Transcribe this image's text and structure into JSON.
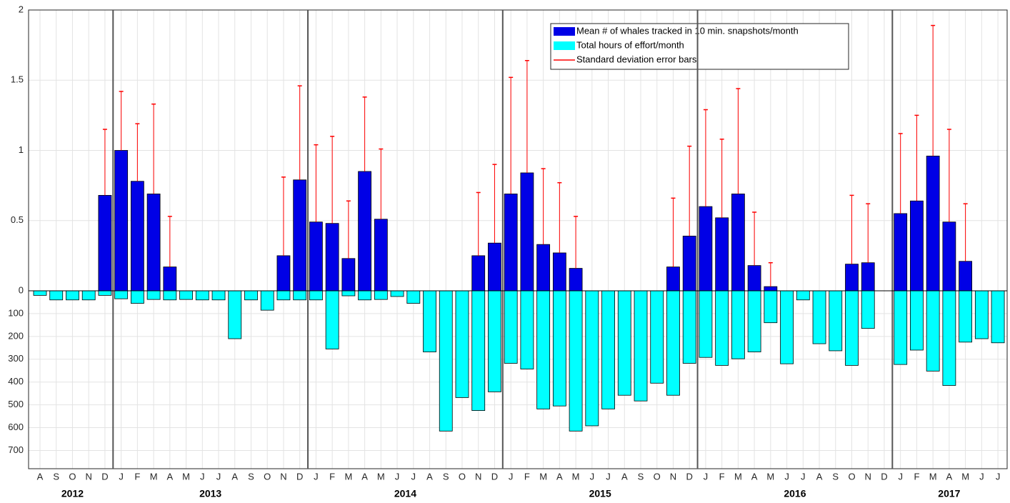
{
  "chart_data": {
    "type": "bar",
    "categories": [
      "A",
      "S",
      "O",
      "N",
      "D",
      "J",
      "F",
      "M",
      "A",
      "M",
      "J",
      "J",
      "A",
      "S",
      "O",
      "N",
      "D",
      "J",
      "F",
      "M",
      "A",
      "M",
      "J",
      "J",
      "A",
      "S",
      "O",
      "N",
      "D",
      "J",
      "F",
      "M",
      "A",
      "M",
      "J",
      "J",
      "A",
      "S",
      "O",
      "N",
      "D",
      "J",
      "F",
      "M",
      "A",
      "M",
      "J",
      "J",
      "A",
      "S",
      "O",
      "N",
      "D",
      "J",
      "F",
      "M",
      "A",
      "M",
      "J",
      "J"
    ],
    "year_labels": [
      "2012",
      "2013",
      "2014",
      "2015",
      "2016",
      "2017"
    ],
    "series": [
      {
        "name": "Mean # of whales tracked in 10 min. snapshots/month",
        "color": "#0000e6",
        "values": [
          null,
          null,
          null,
          null,
          0.68,
          1.0,
          0.78,
          0.69,
          0.17,
          null,
          null,
          null,
          null,
          null,
          null,
          0.25,
          0.79,
          0.49,
          0.48,
          0.23,
          0.85,
          0.51,
          null,
          null,
          null,
          null,
          null,
          0.25,
          0.34,
          0.69,
          0.84,
          0.33,
          0.27,
          0.16,
          null,
          null,
          null,
          null,
          null,
          0.17,
          0.39,
          0.6,
          0.52,
          0.69,
          0.18,
          0.03,
          null,
          null,
          null,
          null,
          0.19,
          0.2,
          null,
          0.55,
          0.64,
          0.96,
          0.49,
          0.21,
          null,
          null
        ]
      },
      {
        "name": "Total hours of effort/month",
        "color": "#00ffff",
        "axis": "y2",
        "values": [
          20,
          40,
          40,
          40,
          20,
          35,
          55,
          38,
          40,
          38,
          40,
          40,
          210,
          40,
          85,
          40,
          40,
          40,
          255,
          22,
          40,
          38,
          25,
          55,
          268,
          615,
          468,
          525,
          443,
          318,
          343,
          518,
          505,
          615,
          592,
          518,
          458,
          483,
          405,
          458,
          318,
          292,
          327,
          298,
          268,
          140,
          320,
          40,
          232,
          263,
          327,
          165,
          null,
          323,
          260,
          352,
          415,
          225,
          210,
          228
        ]
      }
    ],
    "errors": {
      "name": "Standard deviation error bars",
      "color": "#ff0000",
      "values": [
        null,
        null,
        null,
        null,
        0.47,
        0.42,
        0.41,
        0.64,
        0.36,
        null,
        null,
        null,
        null,
        null,
        null,
        0.56,
        0.67,
        0.55,
        0.62,
        0.41,
        0.53,
        0.5,
        null,
        null,
        null,
        null,
        null,
        0.45,
        0.56,
        0.83,
        0.8,
        0.54,
        0.5,
        0.37,
        null,
        null,
        null,
        null,
        null,
        0.49,
        0.64,
        0.69,
        0.56,
        0.75,
        0.38,
        0.17,
        null,
        null,
        null,
        null,
        0.49,
        0.42,
        null,
        0.57,
        0.61,
        0.93,
        0.66,
        0.41,
        null,
        null
      ]
    },
    "ylim": [
      0,
      2
    ],
    "yticks": [
      0,
      0.5,
      1,
      1.5,
      2
    ],
    "y2lim": [
      0,
      780
    ],
    "y2ticks": [
      100,
      200,
      300,
      400,
      500,
      600,
      700
    ],
    "y2_inverted": true,
    "grid": true,
    "legend": "top-right"
  }
}
